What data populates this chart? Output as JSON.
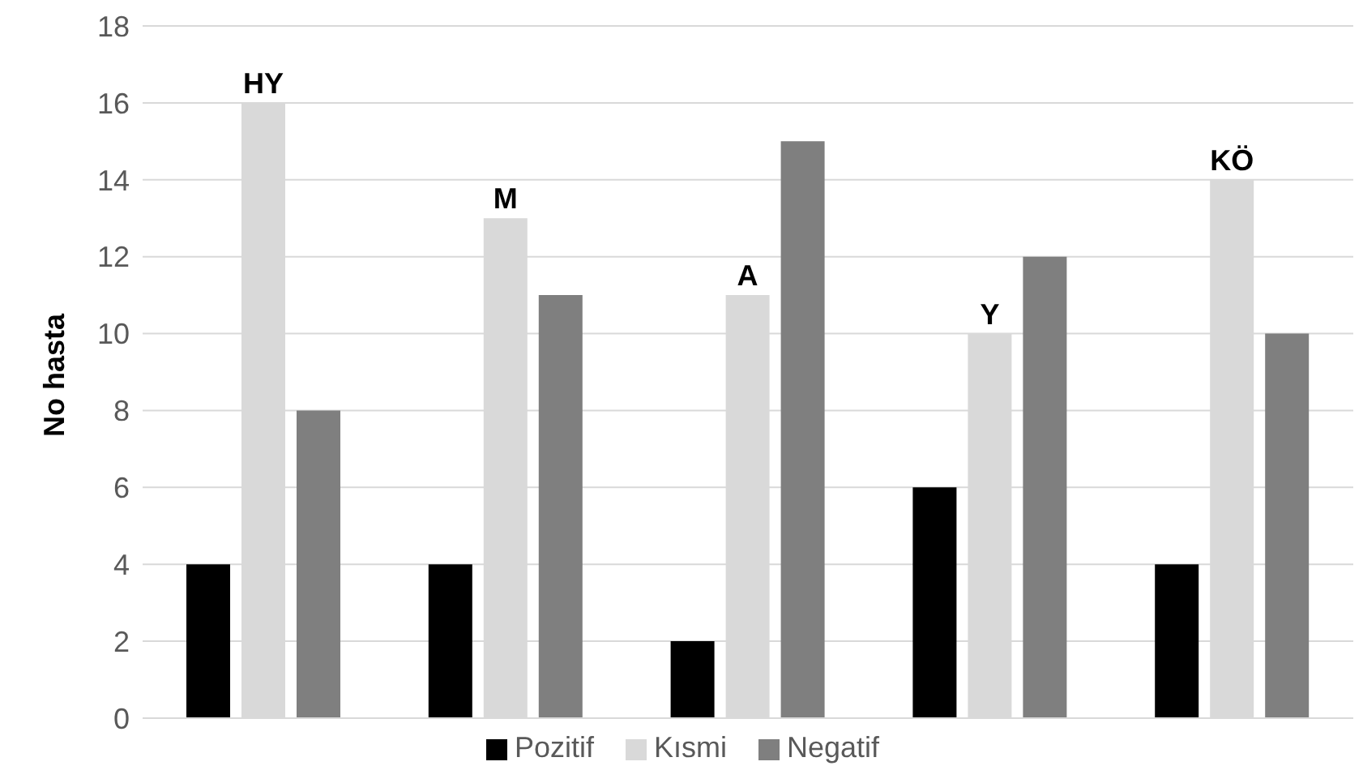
{
  "chart_data": {
    "type": "bar",
    "ylabel": "No hasta",
    "categories": [
      "HY",
      "M",
      "A",
      "Y",
      "KÖ"
    ],
    "series": [
      {
        "name": "Pozitif",
        "color": "#000000",
        "values": [
          4,
          4,
          2,
          6,
          4
        ]
      },
      {
        "name": "Kısmi",
        "color": "#d9d9d9",
        "values": [
          16,
          13,
          11,
          10,
          14
        ]
      },
      {
        "name": "Negatif",
        "color": "#7f7f7f",
        "values": [
          8,
          11,
          15,
          12,
          10
        ]
      }
    ],
    "ylim": [
      0,
      18
    ],
    "yticks": [
      0,
      2,
      4,
      6,
      8,
      10,
      12,
      14,
      16,
      18
    ],
    "grid": "y",
    "legend": "bottom",
    "tick_labels": "y"
  }
}
